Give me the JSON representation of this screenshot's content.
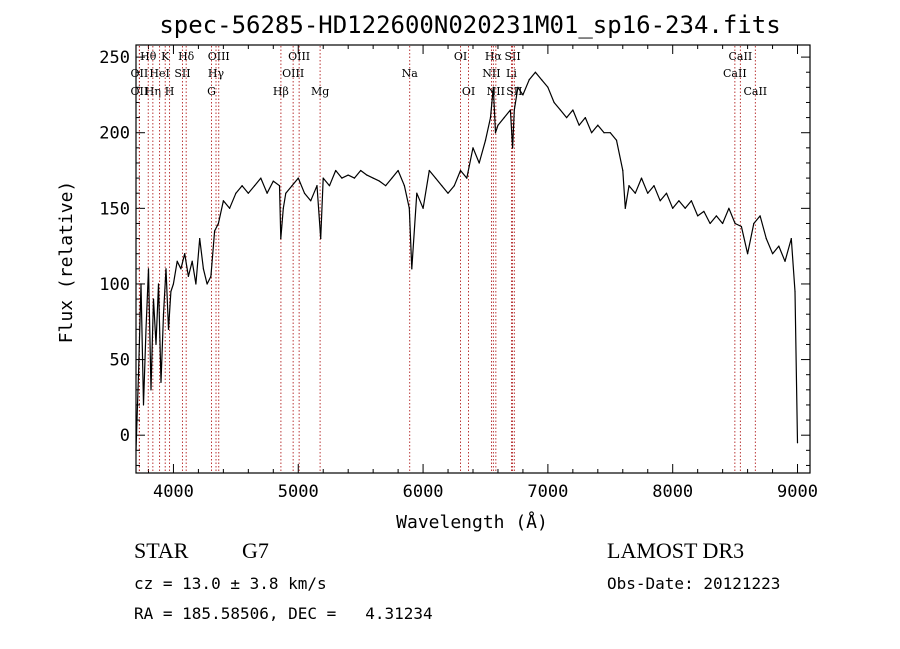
{
  "chart_data": {
    "type": "line",
    "title": "spec-56285-HD122600N020231M01_sp16-234.fits",
    "xlabel": "Wavelength (Å)",
    "ylabel": "Flux (relative)",
    "xlim": [
      3700,
      9100
    ],
    "ylim": [
      -25,
      258
    ],
    "xticks": [
      4000,
      5000,
      6000,
      7000,
      8000,
      9000
    ],
    "yticks": [
      0,
      50,
      100,
      150,
      200,
      250
    ],
    "grid": false,
    "line_color": "#000000",
    "marker_color": "#b22222",
    "series": [
      {
        "x": [
          3700,
          3720,
          3740,
          3760,
          3780,
          3800,
          3820,
          3840,
          3860,
          3880,
          3900,
          3920,
          3940,
          3960,
          3980,
          4000,
          4030,
          4060,
          4090,
          4120,
          4150,
          4180,
          4210,
          4240,
          4270,
          4300,
          4330,
          4360,
          4400,
          4450,
          4500,
          4550,
          4600,
          4650,
          4700,
          4750,
          4800,
          4850,
          4860,
          4880,
          4900,
          4950,
          5000,
          5050,
          5100,
          5150,
          5180,
          5200,
          5250,
          5300,
          5350,
          5400,
          5450,
          5500,
          5550,
          5600,
          5650,
          5700,
          5750,
          5800,
          5850,
          5890,
          5910,
          5950,
          6000,
          6050,
          6100,
          6150,
          6200,
          6250,
          6300,
          6350,
          6400,
          6450,
          6500,
          6540,
          6563,
          6580,
          6600,
          6650,
          6700,
          6717,
          6731,
          6760,
          6800,
          6850,
          6900,
          6950,
          7000,
          7050,
          7100,
          7150,
          7200,
          7250,
          7300,
          7350,
          7400,
          7450,
          7500,
          7550,
          7600,
          7620,
          7650,
          7700,
          7750,
          7800,
          7850,
          7900,
          7950,
          8000,
          8050,
          8100,
          8150,
          8200,
          8250,
          8300,
          8350,
          8400,
          8450,
          8500,
          8550,
          8600,
          8650,
          8700,
          8750,
          8800,
          8850,
          8900,
          8950,
          8980,
          9000
        ],
        "y": [
          -10,
          40,
          100,
          20,
          70,
          110,
          30,
          90,
          60,
          100,
          35,
          80,
          110,
          70,
          95,
          100,
          115,
          110,
          120,
          105,
          115,
          100,
          130,
          110,
          100,
          105,
          135,
          140,
          155,
          150,
          160,
          165,
          160,
          165,
          170,
          160,
          168,
          165,
          130,
          150,
          160,
          165,
          170,
          160,
          155,
          165,
          130,
          170,
          165,
          175,
          170,
          172,
          170,
          175,
          172,
          170,
          168,
          165,
          170,
          175,
          165,
          150,
          110,
          160,
          150,
          175,
          170,
          165,
          160,
          165,
          175,
          170,
          190,
          180,
          195,
          210,
          230,
          200,
          205,
          210,
          215,
          190,
          215,
          230,
          225,
          235,
          240,
          235,
          230,
          220,
          215,
          210,
          215,
          205,
          210,
          200,
          205,
          200,
          200,
          195,
          175,
          150,
          165,
          160,
          170,
          160,
          165,
          155,
          160,
          150,
          155,
          150,
          155,
          145,
          148,
          140,
          145,
          140,
          150,
          140,
          138,
          120,
          140,
          145,
          130,
          120,
          125,
          115,
          130,
          95,
          -5
        ]
      }
    ],
    "lines": [
      {
        "label": "Hθ",
        "x": 3798,
        "row": 0
      },
      {
        "label": "OII",
        "x": 3727,
        "row": 1
      },
      {
        "label": "OII",
        "x": 3727,
        "row": 2
      },
      {
        "label": "Hη",
        "x": 3835,
        "row": 2
      },
      {
        "label": "HeI",
        "x": 3889,
        "row": 1
      },
      {
        "label": "K",
        "x": 3934,
        "row": 0
      },
      {
        "label": "H",
        "x": 3969,
        "row": 2
      },
      {
        "label": "SII",
        "x": 4072,
        "row": 1
      },
      {
        "label": "Hδ",
        "x": 4102,
        "row": 0
      },
      {
        "label": "OIII",
        "x": 4363,
        "row": 0
      },
      {
        "label": "Hγ",
        "x": 4341,
        "row": 1
      },
      {
        "label": "G",
        "x": 4305,
        "row": 2
      },
      {
        "label": "Hβ",
        "x": 4861,
        "row": 2
      },
      {
        "label": "OIII",
        "x": 5007,
        "row": 0
      },
      {
        "label": "OIII",
        "x": 4959,
        "row": 1
      },
      {
        "label": "Mg",
        "x": 5175,
        "row": 2
      },
      {
        "label": "Na",
        "x": 5893,
        "row": 1
      },
      {
        "label": "OI",
        "x": 6300,
        "row": 0
      },
      {
        "label": "OI",
        "x": 6364,
        "row": 2
      },
      {
        "label": "Hα",
        "x": 6563,
        "row": 0
      },
      {
        "label": "NII",
        "x": 6548,
        "row": 1
      },
      {
        "label": "NII",
        "x": 6583,
        "row": 2
      },
      {
        "label": "SII",
        "x": 6717,
        "row": 0
      },
      {
        "label": "Li",
        "x": 6708,
        "row": 1
      },
      {
        "label": "SII",
        "x": 6731,
        "row": 2
      },
      {
        "label": "CaII",
        "x": 8542,
        "row": 0
      },
      {
        "label": "CaII",
        "x": 8498,
        "row": 1
      },
      {
        "label": "CaII",
        "x": 8662,
        "row": 2
      }
    ]
  },
  "info": {
    "class": "STAR",
    "subclass": "G7",
    "survey": "LAMOST DR3",
    "cz": "cz = 13.0 ± 3.8 km/s",
    "obsdate": "Obs-Date: 20121223",
    "radec": "RA = 185.58506, DEC =   4.31234"
  }
}
